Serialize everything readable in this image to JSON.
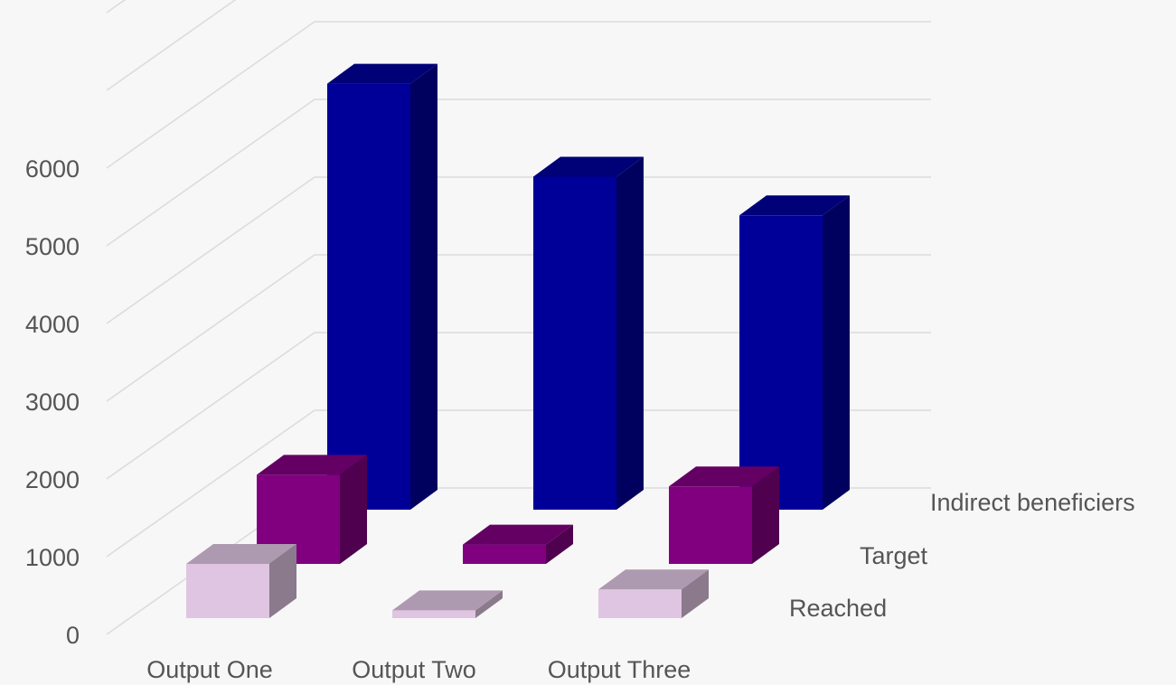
{
  "chart_data": {
    "type": "bar",
    "subtype": "3d-clustered-depth",
    "categories": [
      "Output One",
      "Output Two",
      "Output Three"
    ],
    "series": [
      {
        "name": "Reached",
        "values": [
          700,
          100,
          370
        ],
        "color": "#dfc5e1"
      },
      {
        "name": "Target",
        "values": [
          1150,
          250,
          1000
        ],
        "color": "#800080"
      },
      {
        "name": "Indirect beneficiers",
        "values": [
          5500,
          4300,
          3800
        ],
        "color": "#000099"
      }
    ],
    "y_ticks": [
      "0",
      "1000",
      "2000",
      "3000",
      "4000",
      "5000",
      "6000"
    ],
    "ylim": [
      0,
      7000
    ],
    "title": "",
    "xlabel": "",
    "ylabel": "",
    "grid": true,
    "legend": "series labels at right along depth axis"
  }
}
